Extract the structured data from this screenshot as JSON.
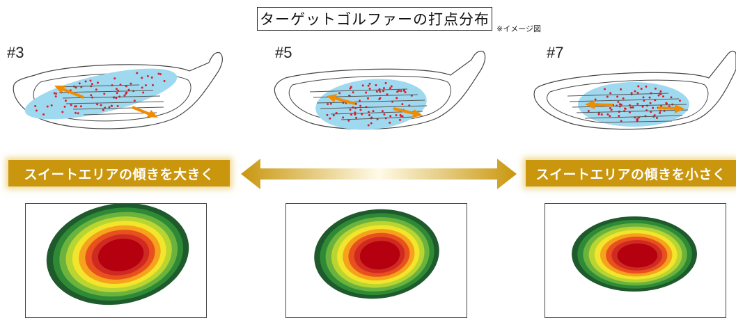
{
  "title": "ターゲットゴルファーの打点分布",
  "note": "※イメージ図",
  "clubs": [
    {
      "label": "#3"
    },
    {
      "label": "#5"
    },
    {
      "label": "#7"
    }
  ],
  "banners": {
    "left": "スイートエリアの傾きを大きく",
    "right": "スイートエリアの傾きを小さく"
  },
  "colors": {
    "banner": "#c9960d",
    "hit_area": "#9fd9ef",
    "dots": "#d61f2c",
    "arrows": "#f08c00",
    "zone_rings": [
      "#1e5a2c",
      "#2f8a36",
      "#6cb33e",
      "#b9d531",
      "#f2e52b",
      "#f5a21c",
      "#e8501e",
      "#cf2a22",
      "#b4000f"
    ]
  }
}
